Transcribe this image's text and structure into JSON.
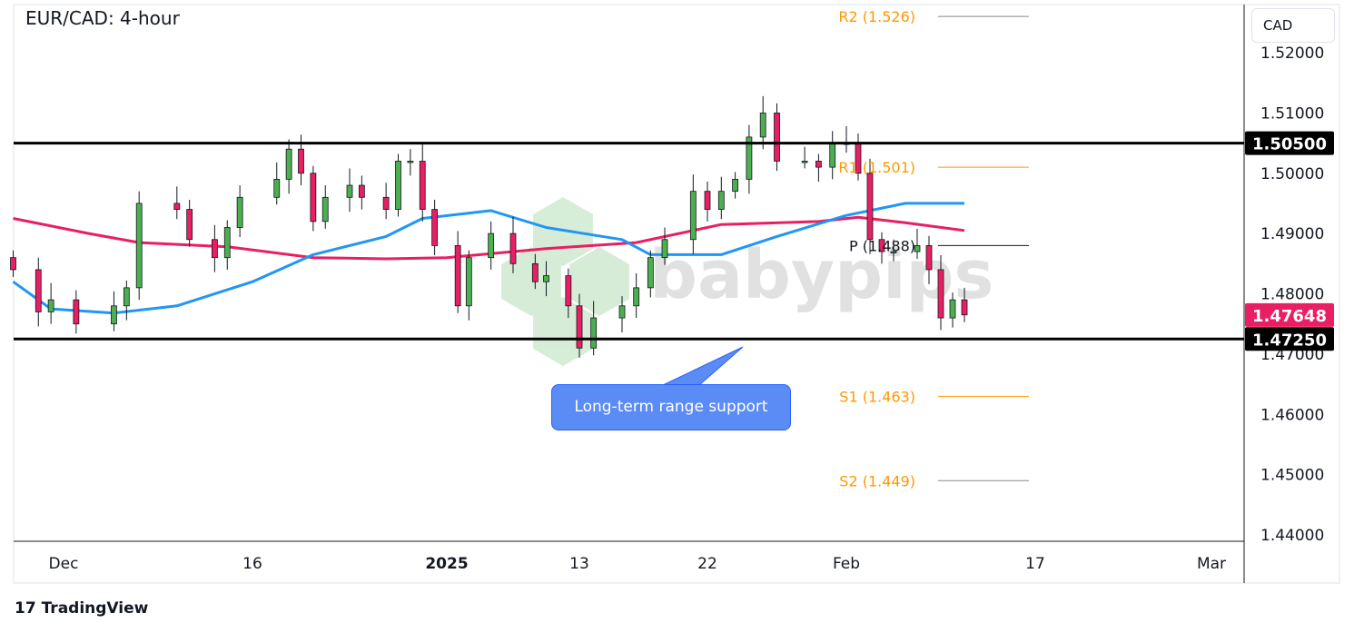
{
  "header": {
    "title": "EUR/CAD: 4-hour",
    "currency_button": "CAD"
  },
  "footer": {
    "brand": "TradingView"
  },
  "watermark": "babypips",
  "annotation": {
    "text": "Long-term range support"
  },
  "colors": {
    "up": "#4caf50",
    "down": "#e91e63",
    "ma_fast": "#2196f3",
    "ma_slow": "#e91e63",
    "pivot": "#ff9800",
    "callout": "#5b8cf5"
  },
  "chart_data": {
    "type": "candlestick",
    "title": "EUR/CAD: 4-hour",
    "ylim": [
      1.44,
      1.528
    ],
    "y_ticks": [
      "1.52000",
      "1.51000",
      "1.50000",
      "1.49000",
      "1.48000",
      "1.47000",
      "1.46000",
      "1.45000",
      "1.44000"
    ],
    "x_ticks": [
      {
        "label": "Dec",
        "date": "2024-12-01"
      },
      {
        "label": "16",
        "date": "2024-12-16"
      },
      {
        "label": "2025",
        "date": "2025-01-01"
      },
      {
        "label": "13",
        "date": "2025-01-13"
      },
      {
        "label": "22",
        "date": "2025-01-22"
      },
      {
        "label": "Feb",
        "date": "2025-02-01"
      },
      {
        "label": "17",
        "date": "2025-02-17"
      },
      {
        "label": "Mar",
        "date": "2025-03-01"
      }
    ],
    "price_closes": [
      [
        "2024-11-27",
        1.484
      ],
      [
        "2024-11-29",
        1.477
      ],
      [
        "2024-11-30",
        1.479
      ],
      [
        "2024-12-02",
        1.475
      ],
      [
        "2024-12-05",
        1.478
      ],
      [
        "2024-12-06",
        1.481
      ],
      [
        "2024-12-07",
        1.495
      ],
      [
        "2024-12-10",
        1.494
      ],
      [
        "2024-12-11",
        1.489
      ],
      [
        "2024-12-13",
        1.486
      ],
      [
        "2024-12-14",
        1.491
      ],
      [
        "2024-12-15",
        1.496
      ],
      [
        "2024-12-18",
        1.499
      ],
      [
        "2024-12-19",
        1.504
      ],
      [
        "2024-12-20",
        1.5
      ],
      [
        "2024-12-21",
        1.492
      ],
      [
        "2024-12-22",
        1.496
      ],
      [
        "2024-12-24",
        1.498
      ],
      [
        "2024-12-25",
        1.496
      ],
      [
        "2024-12-27",
        1.494
      ],
      [
        "2024-12-28",
        1.502
      ],
      [
        "2024-12-29",
        1.502
      ],
      [
        "2024-12-30",
        1.494
      ],
      [
        "2024-12-31",
        1.488
      ],
      [
        "2025-01-02",
        1.478
      ],
      [
        "2025-01-03",
        1.486
      ],
      [
        "2025-01-05",
        1.49
      ],
      [
        "2025-01-07",
        1.485
      ],
      [
        "2025-01-09",
        1.482
      ],
      [
        "2025-01-10",
        1.483
      ],
      [
        "2025-01-12",
        1.478
      ],
      [
        "2025-01-13",
        1.471
      ],
      [
        "2025-01-14",
        1.476
      ],
      [
        "2025-01-16",
        1.478
      ],
      [
        "2025-01-17",
        1.481
      ],
      [
        "2025-01-18",
        1.486
      ],
      [
        "2025-01-19",
        1.489
      ],
      [
        "2025-01-21",
        1.497
      ],
      [
        "2025-01-22",
        1.494
      ],
      [
        "2025-01-23",
        1.497
      ],
      [
        "2025-01-24",
        1.499
      ],
      [
        "2025-01-25",
        1.506
      ],
      [
        "2025-01-26",
        1.51
      ],
      [
        "2025-01-27",
        1.502
      ],
      [
        "2025-01-29",
        1.502
      ],
      [
        "2025-01-30",
        1.501
      ],
      [
        "2025-01-31",
        1.505
      ],
      [
        "2025-02-01",
        1.505
      ],
      [
        "2025-02-02",
        1.5
      ],
      [
        "2025-02-03",
        1.489
      ],
      [
        "2025-02-04",
        1.487
      ],
      [
        "2025-02-05",
        1.487
      ],
      [
        "2025-02-07",
        1.488
      ],
      [
        "2025-02-08",
        1.484
      ],
      [
        "2025-02-09",
        1.476
      ],
      [
        "2025-02-10",
        1.479
      ],
      [
        "2025-02-11",
        1.4765
      ]
    ],
    "ma_fast": [
      [
        "2024-11-27",
        1.482
      ],
      [
        "2024-11-30",
        1.4775
      ],
      [
        "2024-12-05",
        1.4768
      ],
      [
        "2024-12-10",
        1.478
      ],
      [
        "2024-12-16",
        1.482
      ],
      [
        "2024-12-21",
        1.4865
      ],
      [
        "2024-12-27",
        1.4895
      ],
      [
        "2024-12-30",
        1.4925
      ],
      [
        "2025-01-05",
        1.4938
      ],
      [
        "2025-01-10",
        1.491
      ],
      [
        "2025-01-16",
        1.489
      ],
      [
        "2025-01-18",
        1.4865
      ],
      [
        "2025-01-23",
        1.4865
      ],
      [
        "2025-01-27",
        1.4895
      ],
      [
        "2025-02-01",
        1.493
      ],
      [
        "2025-02-06",
        1.495
      ],
      [
        "2025-02-11",
        1.495
      ]
    ],
    "ma_slow": [
      [
        "2024-11-27",
        1.4925
      ],
      [
        "2024-12-03",
        1.49
      ],
      [
        "2024-12-07",
        1.4885
      ],
      [
        "2024-12-14",
        1.4878
      ],
      [
        "2024-12-21",
        1.486
      ],
      [
        "2024-12-27",
        1.4858
      ],
      [
        "2025-01-01",
        1.486
      ],
      [
        "2025-01-10",
        1.4875
      ],
      [
        "2025-01-17",
        1.4885
      ],
      [
        "2025-01-23",
        1.4915
      ],
      [
        "2025-01-30",
        1.492
      ],
      [
        "2025-02-02",
        1.4927
      ],
      [
        "2025-02-06",
        1.4918
      ],
      [
        "2025-02-11",
        1.4905
      ]
    ],
    "horizontal_levels": [
      {
        "value": 1.505,
        "label": "1.50500"
      },
      {
        "value": 1.4725,
        "label": "1.47250"
      }
    ],
    "last_price": {
      "value": 1.47648,
      "label": "1.47648"
    },
    "pivots": [
      {
        "name": "R2",
        "value": 1.526,
        "label": "R2 (1.526)"
      },
      {
        "name": "R1",
        "value": 1.501,
        "label": "R1 (1.501)"
      },
      {
        "name": "P",
        "value": 1.488,
        "label": "P (1.488)"
      },
      {
        "name": "S1",
        "value": 1.463,
        "label": "S1 (1.463)"
      },
      {
        "name": "S2",
        "value": 1.449,
        "label": "S2 (1.449)"
      }
    ]
  }
}
